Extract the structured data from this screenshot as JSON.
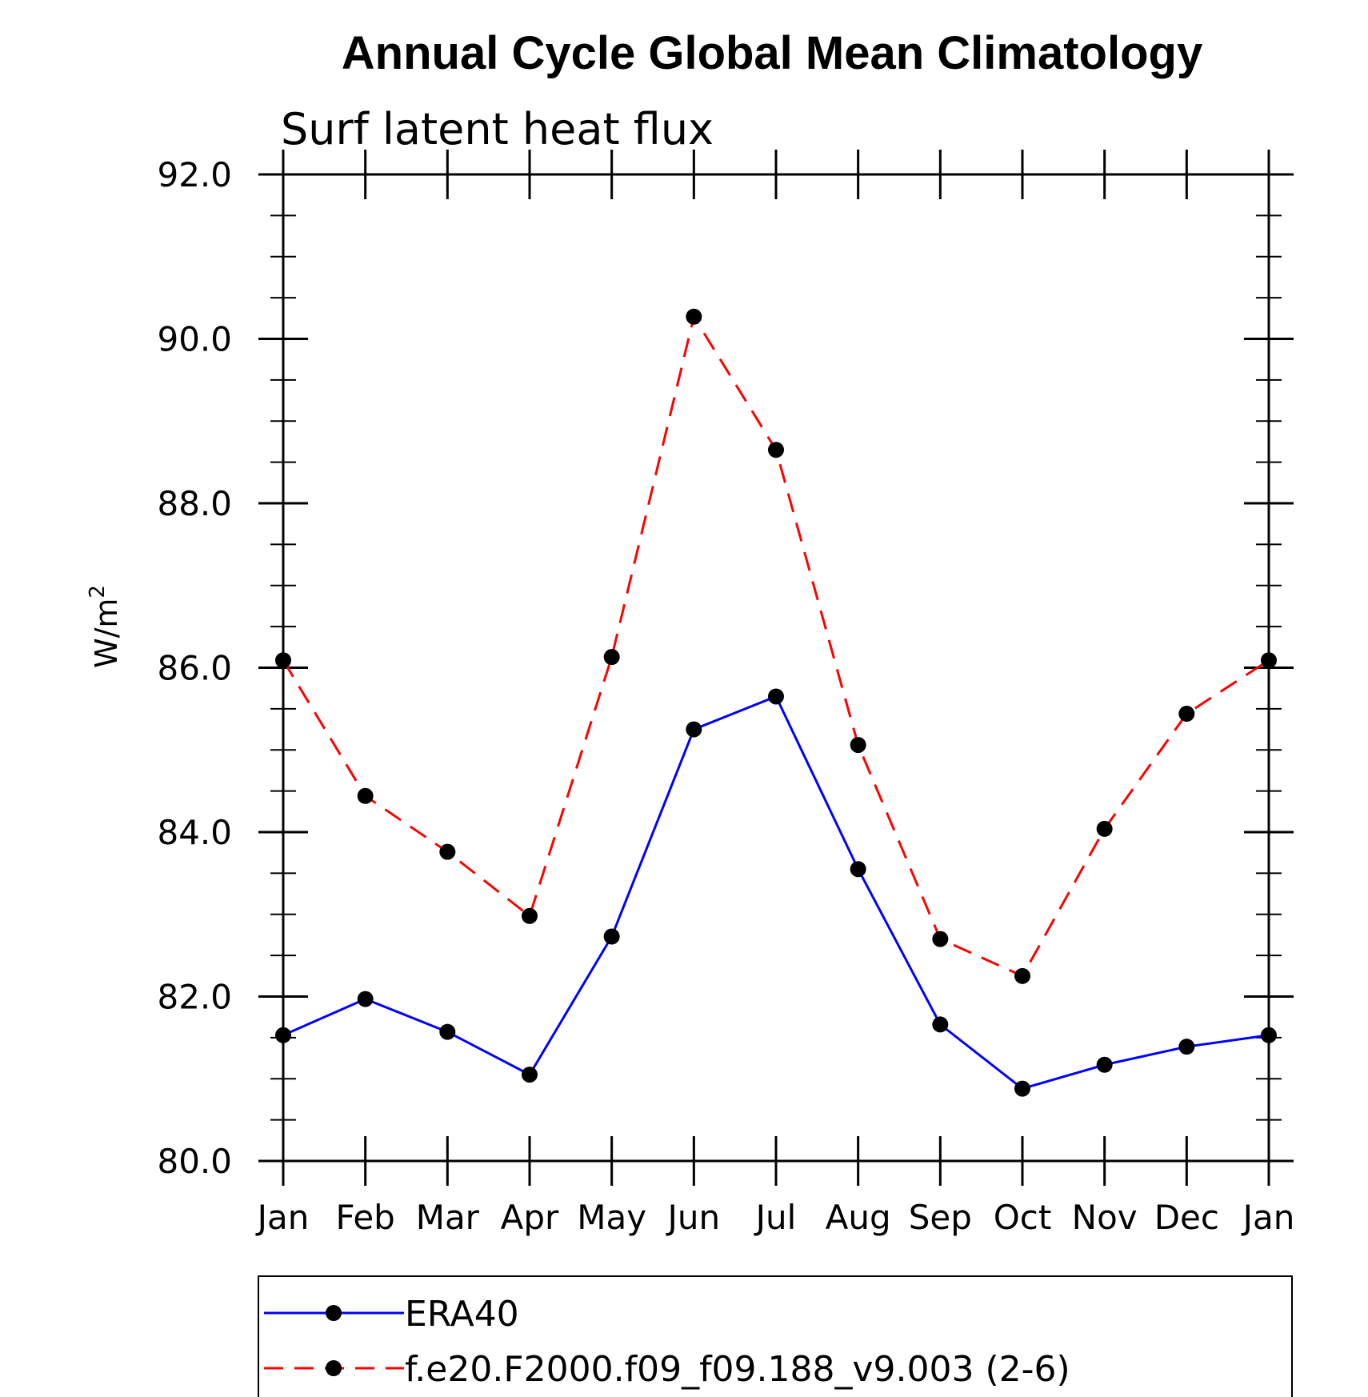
{
  "chart_data": {
    "type": "line",
    "title": "Annual Cycle Global Mean Climatology",
    "subtitle": "Surf latent heat flux",
    "ylabel": "W/m",
    "ylabel_superscript": "2",
    "xlabel": "",
    "ylim": [
      80.0,
      92.0
    ],
    "y_ticks": [
      "80.0",
      "82.0",
      "84.0",
      "86.0",
      "88.0",
      "90.0",
      "92.0"
    ],
    "categories": [
      "Jan",
      "Feb",
      "Mar",
      "Apr",
      "May",
      "Jun",
      "Jul",
      "Aug",
      "Sep",
      "Oct",
      "Nov",
      "Dec",
      "Jan"
    ],
    "series": [
      {
        "name": "ERA40",
        "color": "#0000ff",
        "line_style": "solid",
        "marker": "filled-circle",
        "values": [
          81.53,
          81.97,
          81.57,
          81.05,
          82.73,
          85.25,
          85.65,
          83.55,
          81.66,
          80.88,
          81.17,
          81.39,
          81.53
        ]
      },
      {
        "name": "f.e20.F2000.f09_f09.188_v9.003 (2-6)",
        "color": "#ff0000",
        "line_style": "dashed",
        "marker": "filled-circle",
        "values": [
          86.09,
          84.44,
          83.76,
          82.98,
          86.13,
          90.27,
          88.65,
          85.06,
          82.7,
          82.25,
          84.04,
          85.44,
          86.09
        ]
      }
    ],
    "legend_position": "bottom"
  }
}
